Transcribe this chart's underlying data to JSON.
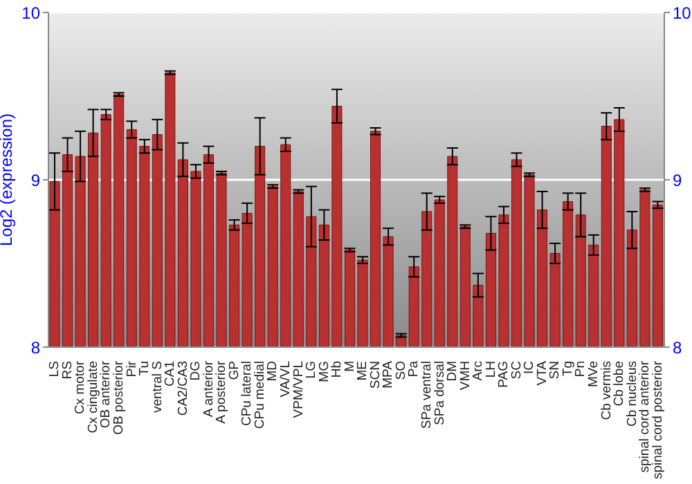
{
  "chart_data": {
    "type": "bar",
    "ylabel": "Log2 (expression)",
    "categories": [
      "LS",
      "RS",
      "Cx motor",
      "Cx cingulate",
      "OB anterior",
      "OB posterior",
      "Pir",
      "Tu",
      "ventral S",
      "CA1",
      "CA2/CA3",
      "DG",
      "A anterior",
      "A posterior",
      "GP",
      "CPu lateral",
      "CPu medial",
      "MD",
      "VA/VL",
      "VPM/VPL",
      "LG",
      "MG",
      "Hb",
      "M",
      "ME",
      "SCN",
      "MPA",
      "SO",
      "Pa",
      "SPa ventral",
      "SPa dorsal",
      "DM",
      "VMH",
      "Arc",
      "LH",
      "PAG",
      "SC",
      "IC",
      "VTA",
      "SN",
      "Tg",
      "Pn",
      "MVe",
      "Cb vermis",
      "Cb lobe",
      "Cb nucleus",
      "spinal cord anterior",
      "spinal cord posterior"
    ],
    "values": [
      8.99,
      9.15,
      9.14,
      9.28,
      9.39,
      9.51,
      9.3,
      9.2,
      9.27,
      9.64,
      9.12,
      9.05,
      9.15,
      9.04,
      8.73,
      8.8,
      9.2,
      8.96,
      9.21,
      8.93,
      8.78,
      8.73,
      9.44,
      8.58,
      8.52,
      9.29,
      8.66,
      8.07,
      8.48,
      8.81,
      8.88,
      9.14,
      8.72,
      8.37,
      8.68,
      8.79,
      9.12,
      9.03,
      8.82,
      8.56,
      8.87,
      8.79,
      8.61,
      9.32,
      9.36,
      8.7,
      8.94,
      8.85
    ],
    "errors": [
      0.17,
      0.1,
      0.15,
      0.14,
      0.03,
      0.01,
      0.05,
      0.04,
      0.09,
      0.01,
      0.1,
      0.04,
      0.05,
      0.01,
      0.03,
      0.06,
      0.17,
      0.01,
      0.04,
      0.01,
      0.18,
      0.09,
      0.1,
      0.01,
      0.02,
      0.02,
      0.05,
      0.01,
      0.06,
      0.11,
      0.02,
      0.05,
      0.01,
      0.07,
      0.1,
      0.05,
      0.04,
      0.01,
      0.11,
      0.06,
      0.05,
      0.13,
      0.06,
      0.08,
      0.07,
      0.11,
      0.01,
      0.02
    ],
    "color": "#b83030",
    "ylim": [
      8,
      10
    ],
    "yticks": [
      8,
      9,
      10
    ],
    "y2lim": [
      8,
      10
    ],
    "y2ticks": [
      8,
      9,
      10
    ],
    "grid": "y",
    "legend": false
  }
}
